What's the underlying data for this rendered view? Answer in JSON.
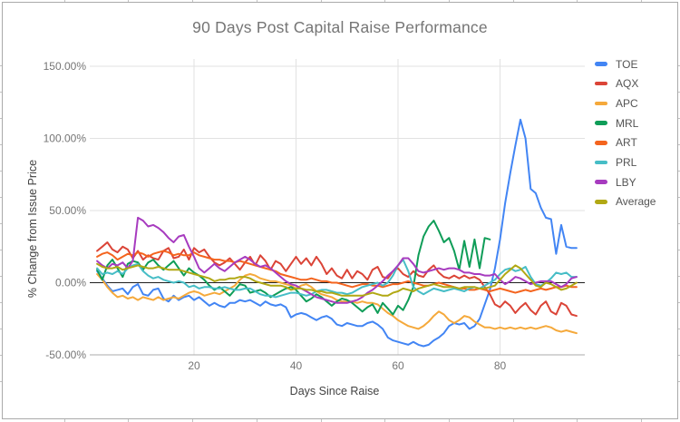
{
  "window": {
    "border_color": "#aaaaaa",
    "grid_stub_color": "#c2c2c2",
    "background": "#ffffff"
  },
  "chart_data": {
    "type": "line",
    "title": "90 Days Post Capital Raise Performance",
    "xlabel": "Days Since Raise",
    "ylabel": "% Change from Issue Price",
    "legend_position": "right",
    "grid": true,
    "x_start": 1,
    "x_step": 1,
    "x_axis": {
      "min": 0,
      "max": 97,
      "tick_values": [
        20,
        40,
        60,
        80
      ],
      "tick_labels": [
        "20",
        "40",
        "60",
        "80"
      ]
    },
    "y_axis": {
      "min": -50,
      "max": 150,
      "tick_values": [
        150,
        100,
        50,
        0,
        -50
      ],
      "tick_labels": [
        "150.00%",
        "100.00%",
        "50.00%",
        "0.00%",
        "-50.00%"
      ]
    },
    "colors": {
      "gridline": "#e2e2e2",
      "axis_baseline": "#ababab",
      "zero_line": "#1f1f1f",
      "tick_text": "#757575",
      "title_text": "#757575",
      "axis_title_text": "#424242",
      "legend_text": "#545454"
    },
    "series": [
      {
        "name": "TOE",
        "color": "#4285F4",
        "values": [
          8,
          3,
          -2,
          -6,
          -5,
          -4,
          -8,
          -3,
          -1,
          -8,
          -9,
          -5,
          -4,
          -11,
          -13,
          -9,
          -12,
          -10,
          -9,
          -12,
          -10,
          -13,
          -16,
          -14,
          -16,
          -17,
          -14,
          -14,
          -12,
          -13,
          -12,
          -14,
          -16,
          -13,
          -15,
          -16,
          -15,
          -17,
          -24,
          -22,
          -21,
          -22,
          -24,
          -26,
          -24,
          -23,
          -25,
          -29,
          -30,
          -28,
          -29,
          -30,
          -30,
          -28,
          -27,
          -29,
          -32,
          -38,
          -40,
          -41,
          -42,
          -43,
          -41,
          -43,
          -44,
          -43,
          -40,
          -38,
          -35,
          -30,
          -28,
          -29,
          -28,
          -32,
          -30,
          -25,
          -15,
          -5,
          10,
          30,
          55,
          76,
          95,
          113,
          100,
          65,
          62,
          52,
          45,
          44,
          20,
          40,
          25,
          24,
          24
        ]
      },
      {
        "name": "AQX",
        "color": "#DB4437",
        "values": [
          22,
          25,
          28,
          23,
          21,
          25,
          23,
          17,
          22,
          16,
          19,
          17,
          16,
          22,
          24,
          17,
          18,
          23,
          16,
          24,
          21,
          23,
          18,
          14,
          12,
          14,
          17,
          13,
          9,
          14,
          18,
          12,
          19,
          15,
          9,
          15,
          13,
          8,
          13,
          18,
          13,
          17,
          12,
          18,
          13,
          6,
          10,
          5,
          3,
          9,
          3,
          8,
          6,
          2,
          9,
          11,
          4,
          3,
          8,
          10,
          6,
          4,
          8,
          5,
          4,
          9,
          12,
          7,
          4,
          3,
          5,
          3,
          5,
          3,
          4,
          2,
          -3,
          -8,
          -15,
          -17,
          -13,
          -16,
          -21,
          -17,
          -14,
          -19,
          -22,
          -16,
          -13,
          -20,
          -22,
          -14,
          -16,
          -22,
          -23
        ]
      },
      {
        "name": "APC",
        "color": "#F5A93B",
        "values": [
          6,
          2,
          -3,
          -7,
          -10,
          -9,
          -11,
          -10,
          -12,
          -10,
          -11,
          -12,
          -10,
          -12,
          -11,
          -10,
          -11,
          -9,
          -7,
          -6,
          -7,
          -9,
          -8,
          -7,
          -8,
          -6,
          -4,
          -2,
          2,
          5,
          6,
          5,
          3,
          2,
          1,
          1,
          0,
          -1,
          -2,
          -4,
          -2,
          -1,
          -3,
          -6,
          -8,
          -9,
          -10,
          -12,
          -13,
          -13,
          -13,
          -14,
          -13,
          -14,
          -14,
          -15,
          -18,
          -21,
          -23,
          -26,
          -28,
          -30,
          -31,
          -32,
          -30,
          -27,
          -23,
          -20,
          -22,
          -26,
          -28,
          -26,
          -23,
          -24,
          -27,
          -29,
          -31,
          -31,
          -32,
          -31,
          -32,
          -31,
          -32,
          -31,
          -32,
          -31,
          -32,
          -31,
          -30,
          -31,
          -33,
          -34,
          -33,
          -34,
          -35
        ]
      },
      {
        "name": "MRL",
        "color": "#0F9D58",
        "values": [
          9,
          2,
          12,
          16,
          10,
          4,
          13,
          15,
          14,
          9,
          14,
          16,
          12,
          9,
          12,
          15,
          10,
          5,
          10,
          7,
          5,
          2,
          -2,
          -5,
          -3,
          -6,
          -9,
          -5,
          -1,
          -2,
          -7,
          -6,
          -5,
          -7,
          -10,
          -8,
          -6,
          -4,
          -3,
          -5,
          -9,
          -13,
          -11,
          -8,
          -10,
          -13,
          -16,
          -13,
          -11,
          -12,
          -14,
          -17,
          -20,
          -17,
          -15,
          -21,
          -14,
          -18,
          -22,
          -16,
          -19,
          -12,
          -3,
          19,
          32,
          39,
          43,
          36,
          28,
          31,
          22,
          9,
          29,
          11,
          30,
          10,
          31,
          30,
          null,
          null,
          null,
          null,
          null,
          null,
          null,
          null,
          null,
          null,
          null,
          null,
          null,
          null,
          null,
          null,
          null
        ]
      },
      {
        "name": "ART",
        "color": "#F4641E",
        "values": [
          18,
          20,
          21,
          19,
          16,
          18,
          20,
          19,
          21,
          20,
          18,
          20,
          21,
          22,
          21,
          19,
          20,
          19,
          19,
          21,
          19,
          18,
          17,
          16,
          16,
          15,
          15,
          14,
          15,
          14,
          13,
          12,
          11,
          10,
          9,
          8,
          6,
          5,
          4,
          3,
          2,
          2,
          3,
          2,
          1,
          1,
          0,
          0,
          -1,
          -2,
          -3,
          -2,
          -1,
          -1,
          -2,
          -2,
          -3,
          -2,
          -1,
          -1,
          0,
          1,
          0,
          -1,
          -2,
          -2,
          -1,
          0,
          -1,
          -2,
          -3,
          -4,
          -4,
          -5,
          -5,
          -4,
          -5,
          -6,
          -5,
          -4,
          -5,
          -6,
          -7,
          -6,
          -5,
          -6,
          -5,
          -4,
          -5,
          -4,
          -3,
          -3,
          -2,
          -3,
          -3
        ]
      },
      {
        "name": "PRL",
        "color": "#46BDC6",
        "values": [
          10,
          6,
          7,
          6,
          8,
          6,
          10,
          12,
          13,
          8,
          5,
          3,
          4,
          2,
          1,
          0,
          1,
          0,
          -3,
          -2,
          -4,
          -3,
          -3,
          -4,
          -4,
          -3,
          -4,
          -5,
          -5,
          -4,
          -4,
          -6,
          -8,
          -9,
          -9,
          -10,
          -9,
          -8,
          -7,
          -7,
          -8,
          -9,
          -8,
          -6,
          -5,
          -5,
          -6,
          -7,
          -7,
          -8,
          -7,
          -5,
          -3,
          -2,
          -1,
          0,
          -2,
          0,
          5,
          12,
          16,
          8,
          -3,
          -6,
          -8,
          -6,
          -4,
          -5,
          -6,
          -5,
          -4,
          -5,
          -6,
          -4,
          -3,
          -4,
          -2,
          0,
          2,
          6,
          9,
          10,
          8,
          9,
          11,
          4,
          -1,
          -2,
          0,
          3,
          7,
          6,
          7,
          4,
          4
        ]
      },
      {
        "name": "LBY",
        "color": "#A73BBF",
        "values": [
          15,
          12,
          10,
          13,
          12,
          14,
          10,
          15,
          45,
          43,
          39,
          40,
          38,
          35,
          31,
          28,
          32,
          33,
          25,
          18,
          10,
          7,
          10,
          13,
          10,
          8,
          11,
          14,
          16,
          18,
          16,
          13,
          11,
          12,
          10,
          7,
          4,
          1,
          -1,
          -2,
          -4,
          -6,
          -8,
          -10,
          -11,
          -12,
          -13,
          -14,
          -14,
          -14,
          -13,
          -12,
          -10,
          -7,
          -5,
          -2,
          1,
          5,
          8,
          12,
          17,
          17,
          13,
          8,
          7,
          8,
          9,
          10,
          9,
          10,
          10,
          9,
          7,
          7,
          6,
          6,
          5,
          5,
          6,
          2,
          -1,
          1,
          4,
          3,
          1,
          -1,
          0,
          1,
          1,
          1,
          -1,
          -3,
          -1,
          3,
          4
        ]
      },
      {
        "name": "Average",
        "color": "#B1A814",
        "values": [
          13,
          11,
          10,
          10,
          11,
          9,
          10,
          11,
          12,
          11,
          10,
          10,
          11,
          10,
          9,
          9,
          9,
          8,
          7,
          6,
          5,
          4,
          3,
          1,
          2,
          2,
          3,
          3,
          4,
          4,
          3,
          1,
          0,
          -1,
          -2,
          -2,
          -2,
          -3,
          -5,
          -4,
          -4,
          -5,
          -5,
          -6,
          -6,
          -7,
          -7,
          -8,
          -9,
          -9,
          -9,
          -9,
          -9,
          -8,
          -7,
          -8,
          -9,
          -9,
          -7,
          -6,
          -4,
          -5,
          -6,
          -4,
          -3,
          -2,
          -1,
          -2,
          -3,
          -3,
          -3,
          -4,
          -3,
          -3,
          -3,
          -4,
          -4,
          -3,
          -2,
          2,
          6,
          9,
          12,
          10,
          6,
          2,
          -2,
          -3,
          0,
          -1,
          -3,
          -5,
          -4,
          -2,
          0
        ]
      }
    ]
  }
}
